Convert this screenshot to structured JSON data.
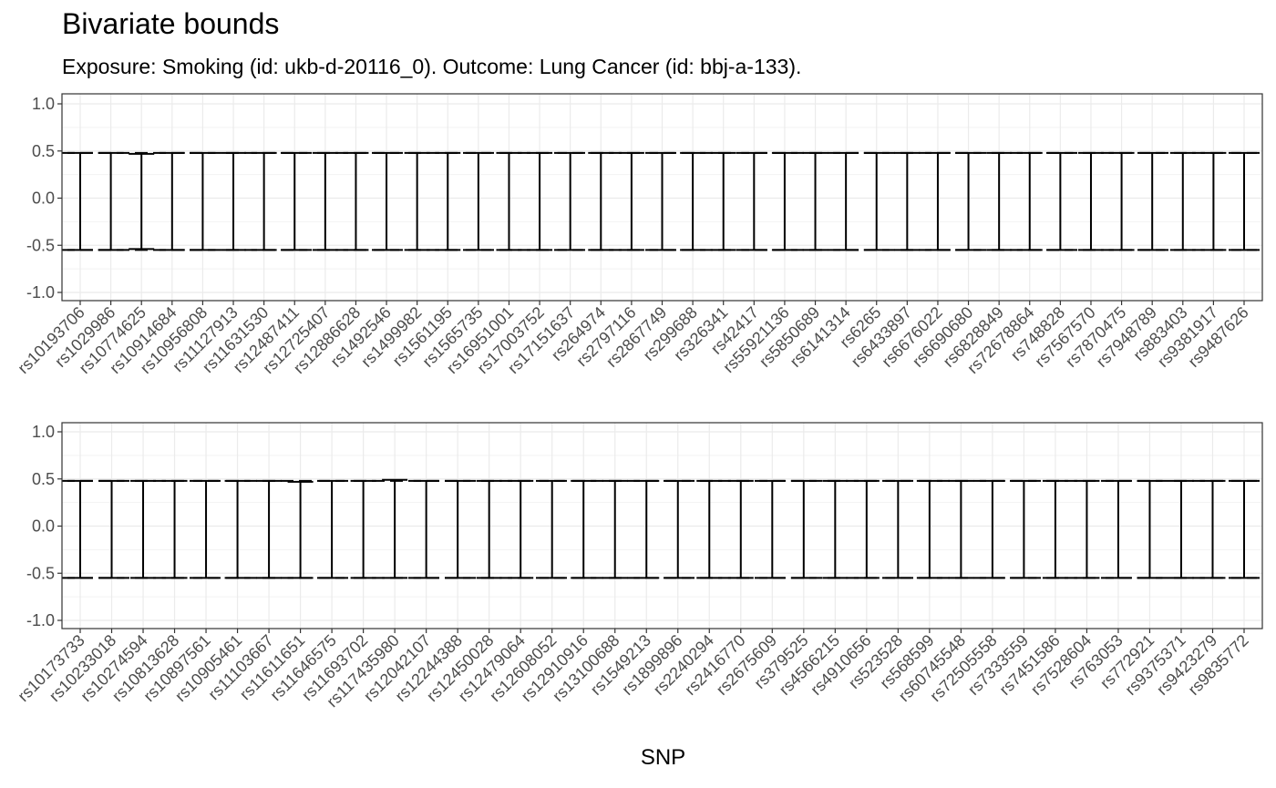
{
  "chart_data": {
    "type": "errorbar",
    "title": "Bivariate bounds",
    "subtitle": "Exposure: Smoking (id: ukb-d-20116_0). Outcome: Lung Cancer (id: bbj-a-133).",
    "xlabel": "SNP",
    "ylabel": "",
    "ylim": [
      -1.05,
      1.05
    ],
    "yticks": [
      "-1.0",
      "-0.5",
      "0.0",
      "0.5",
      "1.0"
    ],
    "reference_lines": [
      0.48,
      -0.55
    ],
    "grid": true,
    "panels": [
      {
        "snps": [
          "rs10193706",
          "rs1029986",
          "rs10774625",
          "rs10914684",
          "rs10956808",
          "rs11127913",
          "rs11631530",
          "rs12487411",
          "rs12725407",
          "rs12886628",
          "rs1492546",
          "rs1499982",
          "rs1561195",
          "rs1565735",
          "rs16951001",
          "rs17003752",
          "rs17151637",
          "rs264974",
          "rs2797116",
          "rs2867749",
          "rs299688",
          "rs326341",
          "rs42417",
          "rs55921136",
          "rs5850689",
          "rs6141314",
          "rs6265",
          "rs6433897",
          "rs6676022",
          "rs6690680",
          "rs6828849",
          "rs72678864",
          "rs748828",
          "rs7567570",
          "rs7870475",
          "rs7948789",
          "rs883403",
          "rs9381917",
          "rs9487626"
        ],
        "lower": [
          -0.55,
          -0.55,
          -0.54,
          -0.55,
          -0.55,
          -0.55,
          -0.55,
          -0.55,
          -0.55,
          -0.55,
          -0.55,
          -0.55,
          -0.55,
          -0.55,
          -0.55,
          -0.55,
          -0.55,
          -0.55,
          -0.55,
          -0.55,
          -0.55,
          -0.55,
          -0.55,
          -0.55,
          -0.55,
          -0.55,
          -0.55,
          -0.55,
          -0.55,
          -0.55,
          -0.55,
          -0.55,
          -0.55,
          -0.55,
          -0.55,
          -0.55,
          -0.55,
          -0.55,
          -0.55
        ],
        "upper": [
          0.48,
          0.48,
          0.47,
          0.48,
          0.48,
          0.48,
          0.48,
          0.48,
          0.48,
          0.48,
          0.48,
          0.48,
          0.48,
          0.48,
          0.48,
          0.48,
          0.48,
          0.48,
          0.48,
          0.48,
          0.48,
          0.48,
          0.48,
          0.48,
          0.48,
          0.48,
          0.48,
          0.48,
          0.48,
          0.48,
          0.48,
          0.48,
          0.48,
          0.48,
          0.48,
          0.48,
          0.48,
          0.48,
          0.48
        ]
      },
      {
        "snps": [
          "rs10173733",
          "rs10233018",
          "rs10274594",
          "rs10813628",
          "rs10897561",
          "rs10905461",
          "rs11103667",
          "rs11611651",
          "rs11646575",
          "rs11693702",
          "rs117435980",
          "rs12042107",
          "rs12244388",
          "rs12450028",
          "rs12479064",
          "rs12608052",
          "rs12910916",
          "rs13100688",
          "rs1549213",
          "rs1899896",
          "rs2240294",
          "rs2416770",
          "rs2675609",
          "rs379525",
          "rs4566215",
          "rs4910656",
          "rs523528",
          "rs568599",
          "rs60745548",
          "rs72505558",
          "rs7333559",
          "rs7451586",
          "rs7528604",
          "rs763053",
          "rs772921",
          "rs9375371",
          "rs9423279",
          "rs9835772"
        ],
        "lower": [
          -0.55,
          -0.55,
          -0.55,
          -0.55,
          -0.55,
          -0.55,
          -0.55,
          -0.55,
          -0.55,
          -0.55,
          -0.55,
          -0.55,
          -0.55,
          -0.55,
          -0.55,
          -0.55,
          -0.55,
          -0.55,
          -0.55,
          -0.55,
          -0.55,
          -0.55,
          -0.55,
          -0.55,
          -0.55,
          -0.55,
          -0.55,
          -0.55,
          -0.55,
          -0.55,
          -0.55,
          -0.55,
          -0.55,
          -0.55,
          -0.55,
          -0.55,
          -0.55,
          -0.55
        ],
        "upper": [
          0.48,
          0.48,
          0.48,
          0.48,
          0.48,
          0.48,
          0.48,
          0.47,
          0.48,
          0.48,
          0.49,
          0.48,
          0.48,
          0.48,
          0.48,
          0.48,
          0.48,
          0.48,
          0.48,
          0.48,
          0.48,
          0.48,
          0.48,
          0.48,
          0.48,
          0.48,
          0.48,
          0.48,
          0.48,
          0.48,
          0.48,
          0.48,
          0.48,
          0.48,
          0.48,
          0.48,
          0.48,
          0.48
        ]
      }
    ]
  }
}
